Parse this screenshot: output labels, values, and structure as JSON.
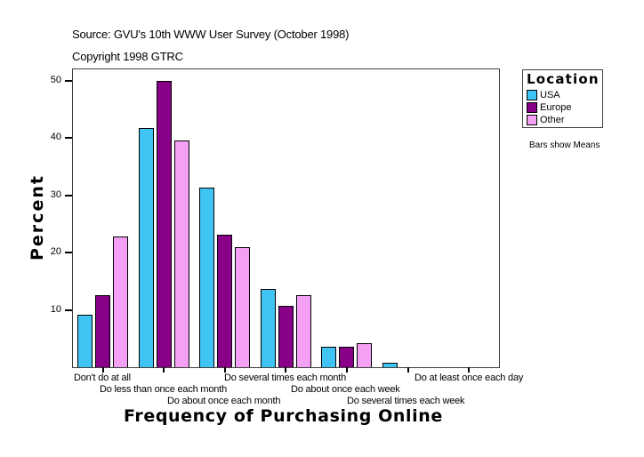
{
  "header": {
    "source": "Source: GVU's 10th WWW User Survey (October 1998)",
    "copyright": "Copyright 1998 GTRC"
  },
  "legend": {
    "title": "Location",
    "items": [
      {
        "label": "USA",
        "color": "#40C4F4"
      },
      {
        "label": "Europe",
        "color": "#880088"
      },
      {
        "label": "Other",
        "color": "#F4A0F4"
      }
    ]
  },
  "note": "Bars show Means",
  "y_ticks": [
    "10",
    "20",
    "30",
    "40",
    "50"
  ],
  "chart_data": {
    "type": "bar",
    "title": "Source: GVU's 10th WWW User Survey (October 1998)",
    "subtitle": "Copyright 1998 GTRC",
    "xlabel": "Frequency of Purchasing Online",
    "ylabel": "Percent",
    "ylim": [
      0,
      52
    ],
    "yticks": [
      10,
      20,
      30,
      40,
      50
    ],
    "grid": false,
    "legend_title": "Location",
    "legend_position": "right",
    "annotation": "Bars show Means",
    "categories": [
      "Don't do at all",
      "Do less than once each month",
      "Do about once each month",
      "Do several times each month",
      "Do about once each week",
      "Do several times each week",
      "Do at least once each day"
    ],
    "series": [
      {
        "name": "USA",
        "color": "#40C4F4",
        "values": [
          9.1,
          41.8,
          31.3,
          13.6,
          3.5,
          0.7,
          0.0
        ]
      },
      {
        "name": "Europe",
        "color": "#880088",
        "values": [
          12.5,
          50.0,
          23.2,
          10.7,
          3.5,
          0.0,
          0.0
        ]
      },
      {
        "name": "Other",
        "color": "#F4A0F4",
        "values": [
          22.9,
          39.6,
          20.9,
          12.5,
          4.2,
          0.0,
          0.0
        ]
      }
    ]
  }
}
